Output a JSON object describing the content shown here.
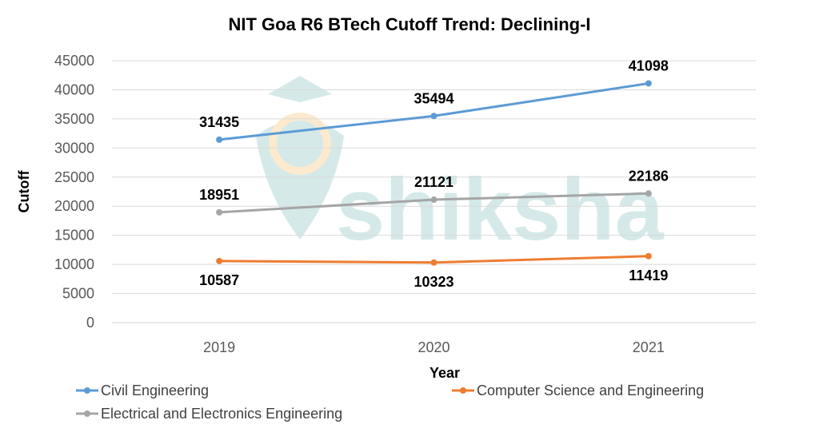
{
  "chart_data": {
    "type": "line",
    "title": "NIT Goa R6 BTech Cutoff Trend: Declining-I",
    "xlabel": "Year",
    "ylabel": "Cutoff",
    "categories": [
      "2019",
      "2020",
      "2021"
    ],
    "ylim": [
      0,
      45000
    ],
    "yticks": [
      0,
      5000,
      10000,
      15000,
      20000,
      25000,
      30000,
      35000,
      40000,
      45000
    ],
    "grid": true,
    "legend": "bottom",
    "series": [
      {
        "name": "Civil Engineering",
        "values": [
          31435,
          35494,
          41098
        ],
        "color": "#5B9BD5",
        "label_pos": "above"
      },
      {
        "name": "Computer Science and Engineering",
        "values": [
          10587,
          10323,
          11419
        ],
        "color": "#ED7D31",
        "label_pos": "below"
      },
      {
        "name": "Electrical and Electronics Engineering",
        "values": [
          18951,
          21121,
          22186
        ],
        "color": "#A5A5A5",
        "label_pos": "above"
      }
    ]
  },
  "watermark": "shiksha"
}
